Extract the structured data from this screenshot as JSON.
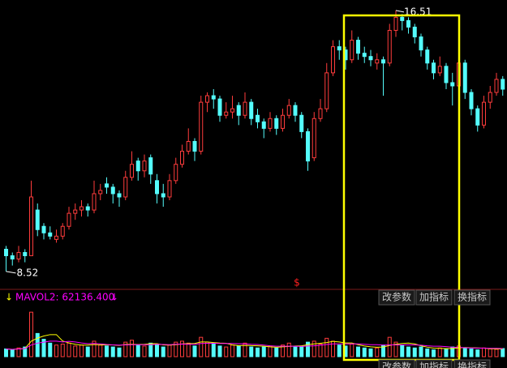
{
  "chart_data": [
    {
      "type": "candlestick",
      "up_color": "#ff3c3c",
      "down_color": "#54fcfc",
      "ylim": [
        8.02,
        16.83
      ],
      "marker": "$",
      "open": [
        9.2,
        9.0,
        8.9,
        9.1,
        9.0,
        10.4,
        9.9,
        9.7,
        9.5,
        9.6,
        9.9,
        10.3,
        10.4,
        10.5,
        10.4,
        10.9,
        11.2,
        11.1,
        10.9,
        10.8,
        11.4,
        11.9,
        11.6,
        12.0,
        11.3,
        10.9,
        10.8,
        11.3,
        11.8,
        12.2,
        12.5,
        12.2,
        13.7,
        13.9,
        13.8,
        13.3,
        13.4,
        13.6,
        13.3,
        13.7,
        13.3,
        13.1,
        12.9,
        13.2,
        12.9,
        13.3,
        13.6,
        13.3,
        12.8,
        12.0,
        13.2,
        13.5,
        14.6,
        15.4,
        15.3,
        15.0,
        15.6,
        15.2,
        15.1,
        14.9,
        15.0,
        14.9,
        15.9,
        16.3,
        16.2,
        16.0,
        15.7,
        15.3,
        14.9,
        14.6,
        14.8,
        14.3,
        14.2,
        14.9,
        14.0,
        13.5,
        13.0,
        13.7,
        14.0,
        14.4
      ],
      "high": [
        9.3,
        9.1,
        9.3,
        9.2,
        11.3,
        10.6,
        10.0,
        9.9,
        9.8,
        10.0,
        10.5,
        10.6,
        10.7,
        10.6,
        11.3,
        11.2,
        11.4,
        11.2,
        11.0,
        11.6,
        12.2,
        12.0,
        12.1,
        12.1,
        11.5,
        11.2,
        11.5,
        12.0,
        12.4,
        12.9,
        12.6,
        13.9,
        14.0,
        14.1,
        13.9,
        13.7,
        13.9,
        13.7,
        14.0,
        13.8,
        13.5,
        13.2,
        13.4,
        13.3,
        13.5,
        13.8,
        13.7,
        13.4,
        12.9,
        13.4,
        13.8,
        14.9,
        15.6,
        15.6,
        15.4,
        15.9,
        15.7,
        15.4,
        15.3,
        15.2,
        15.1,
        16.1,
        16.51,
        16.4,
        16.3,
        16.1,
        15.8,
        15.4,
        15.0,
        15.1,
        14.9,
        14.6,
        15.1,
        15.0,
        14.1,
        13.6,
        13.9,
        14.2,
        14.6,
        14.5
      ],
      "low": [
        8.52,
        8.7,
        8.8,
        8.8,
        9.0,
        9.6,
        9.5,
        9.5,
        9.4,
        9.5,
        9.8,
        10.1,
        10.2,
        10.2,
        10.3,
        10.7,
        10.9,
        10.6,
        10.5,
        10.7,
        11.3,
        11.3,
        11.4,
        11.2,
        10.6,
        10.5,
        10.7,
        11.2,
        11.7,
        12.1,
        11.9,
        12.1,
        13.4,
        13.5,
        13.1,
        13.2,
        13.2,
        13.0,
        13.2,
        13.0,
        12.9,
        12.6,
        12.8,
        12.7,
        12.8,
        13.2,
        13.1,
        12.6,
        11.6,
        11.9,
        13.1,
        13.4,
        14.5,
        15.0,
        14.7,
        14.9,
        15.0,
        14.9,
        14.8,
        14.7,
        13.9,
        14.8,
        15.7,
        15.9,
        15.8,
        15.5,
        15.1,
        14.7,
        14.4,
        14.5,
        14.1,
        13.6,
        14.1,
        13.8,
        13.3,
        12.8,
        12.9,
        13.5,
        13.9,
        13.9
      ],
      "close": [
        9.0,
        8.9,
        9.1,
        9.0,
        10.8,
        9.8,
        9.7,
        9.6,
        9.6,
        9.9,
        10.3,
        10.4,
        10.5,
        10.4,
        10.9,
        11.0,
        11.1,
        10.9,
        10.8,
        11.4,
        11.8,
        11.6,
        11.9,
        11.5,
        10.9,
        10.8,
        11.3,
        11.8,
        12.2,
        12.5,
        12.2,
        13.7,
        13.9,
        13.8,
        13.3,
        13.4,
        13.5,
        13.3,
        13.7,
        13.2,
        13.1,
        12.9,
        13.2,
        12.9,
        13.3,
        13.6,
        13.3,
        12.8,
        11.9,
        13.2,
        13.5,
        14.6,
        15.4,
        15.3,
        15.0,
        15.6,
        15.2,
        15.1,
        15.0,
        15.0,
        14.9,
        15.9,
        16.3,
        16.2,
        16.0,
        15.7,
        15.3,
        14.9,
        14.6,
        14.8,
        14.3,
        14.2,
        14.9,
        14.0,
        13.5,
        13.0,
        13.7,
        14.0,
        14.4,
        14.1
      ]
    },
    {
      "type": "volume",
      "title": "MAVOL2: 62136.400",
      "ylim": [
        0,
        260000
      ],
      "buttons": [
        "改参数",
        "加指标",
        "换指标"
      ],
      "values": [
        40000,
        35000,
        45000,
        50000,
        230000,
        120000,
        90000,
        70000,
        60000,
        65000,
        70000,
        55000,
        60000,
        50000,
        80000,
        60000,
        55000,
        50000,
        45000,
        75000,
        85000,
        60000,
        55000,
        70000,
        65000,
        50000,
        60000,
        75000,
        80000,
        70000,
        55000,
        100000,
        75000,
        65000,
        55000,
        50000,
        60000,
        55000,
        70000,
        50000,
        45000,
        50000,
        55000,
        45000,
        60000,
        70000,
        50000,
        55000,
        75000,
        80000,
        65000,
        95000,
        80000,
        60000,
        55000,
        65000,
        50000,
        45000,
        40000,
        45000,
        60000,
        100000,
        75000,
        60000,
        50000,
        45000,
        50000,
        40000,
        35000,
        45000,
        40000,
        50000,
        55000,
        45000,
        40000,
        35000,
        45000,
        40000,
        38000,
        42000
      ],
      "series": [
        {
          "color": "#ffff00",
          "values": [
            40000,
            38000,
            40000,
            42000,
            80000,
            96000,
            107000,
            114000,
            114000,
            81000,
            71000,
            64000,
            60000,
            60000,
            63000,
            61000,
            61000,
            61000,
            58000,
            63000,
            64000,
            63000,
            64000,
            67000,
            67000,
            61000,
            60000,
            62000,
            66000,
            67000,
            68000,
            76000,
            76000,
            73000,
            70000,
            69000,
            61000,
            57000,
            58000,
            57000,
            56000,
            54000,
            51000,
            49000,
            51000,
            53000,
            55000,
            56000,
            62000,
            66000,
            69000,
            73000,
            79000,
            76000,
            71000,
            71000,
            62000,
            55000,
            51000,
            49000,
            50000,
            58000,
            64000,
            68000,
            70000,
            66000,
            56000,
            49000,
            44000,
            43000,
            42000,
            42000,
            45000,
            47000,
            46000,
            45000,
            44000,
            41000,
            40000,
            40000
          ]
        },
        {
          "color": "#ff00ff",
          "values": [
            40000,
            38000,
            40000,
            42000,
            60000,
            70000,
            75000,
            80000,
            80000,
            76000,
            79000,
            76000,
            71000,
            67000,
            68000,
            66000,
            63000,
            61000,
            60000,
            61000,
            62000,
            62000,
            62000,
            62000,
            64000,
            63000,
            62000,
            64000,
            65000,
            64000,
            64000,
            68000,
            69000,
            69000,
            68000,
            68000,
            68000,
            67000,
            66000,
            64000,
            63000,
            60000,
            56000,
            54000,
            54000,
            54000,
            54000,
            53000,
            55000,
            56000,
            59000,
            63000,
            66000,
            66000,
            66000,
            66000,
            66000,
            64000,
            62000,
            62000,
            60000,
            61000,
            61000,
            61000,
            61000,
            61000,
            59000,
            56000,
            54000,
            54000,
            52000,
            49000,
            48000,
            46000,
            45000,
            44000,
            44000,
            43000,
            43000,
            42000
          ]
        }
      ]
    }
  ]
}
